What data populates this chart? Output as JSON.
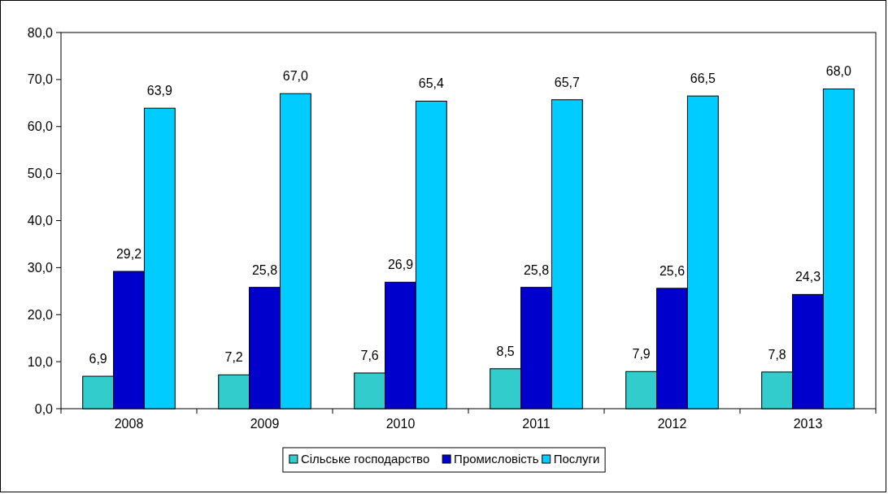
{
  "chart_data": {
    "type": "bar",
    "categories": [
      "2008",
      "2009",
      "2010",
      "2011",
      "2012",
      "2013"
    ],
    "series": [
      {
        "name": "Сільське господарство",
        "color": "#33cccc",
        "values": [
          6.9,
          7.2,
          7.6,
          8.5,
          7.9,
          7.8
        ],
        "value_labels": [
          "6,9",
          "7,2",
          "7,6",
          "8,5",
          "7,9",
          "7,8"
        ]
      },
      {
        "name": "Промисловість",
        "color": "#0000cc",
        "values": [
          29.2,
          25.8,
          26.9,
          25.8,
          25.6,
          24.3
        ],
        "value_labels": [
          "29,2",
          "25,8",
          "26,9",
          "25,8",
          "25,6",
          "24,3"
        ]
      },
      {
        "name": "Послуги",
        "color": "#00ccff",
        "values": [
          63.9,
          67.0,
          65.4,
          65.7,
          66.5,
          68.0
        ],
        "value_labels": [
          "63,9",
          "67,0",
          "65,4",
          "65,7",
          "66,5",
          "68,0"
        ]
      }
    ],
    "ylim": [
      0,
      80
    ],
    "yticks": [
      {
        "value": 0,
        "label": "0,0"
      },
      {
        "value": 10,
        "label": "10,0"
      },
      {
        "value": 20,
        "label": "20,0"
      },
      {
        "value": 30,
        "label": "30,0"
      },
      {
        "value": 40,
        "label": "40,0"
      },
      {
        "value": 50,
        "label": "50,0"
      },
      {
        "value": 60,
        "label": "60,0"
      },
      {
        "value": 70,
        "label": "70,0"
      },
      {
        "value": 80,
        "label": "80,0"
      }
    ],
    "grid": false,
    "legend": "bottom"
  }
}
